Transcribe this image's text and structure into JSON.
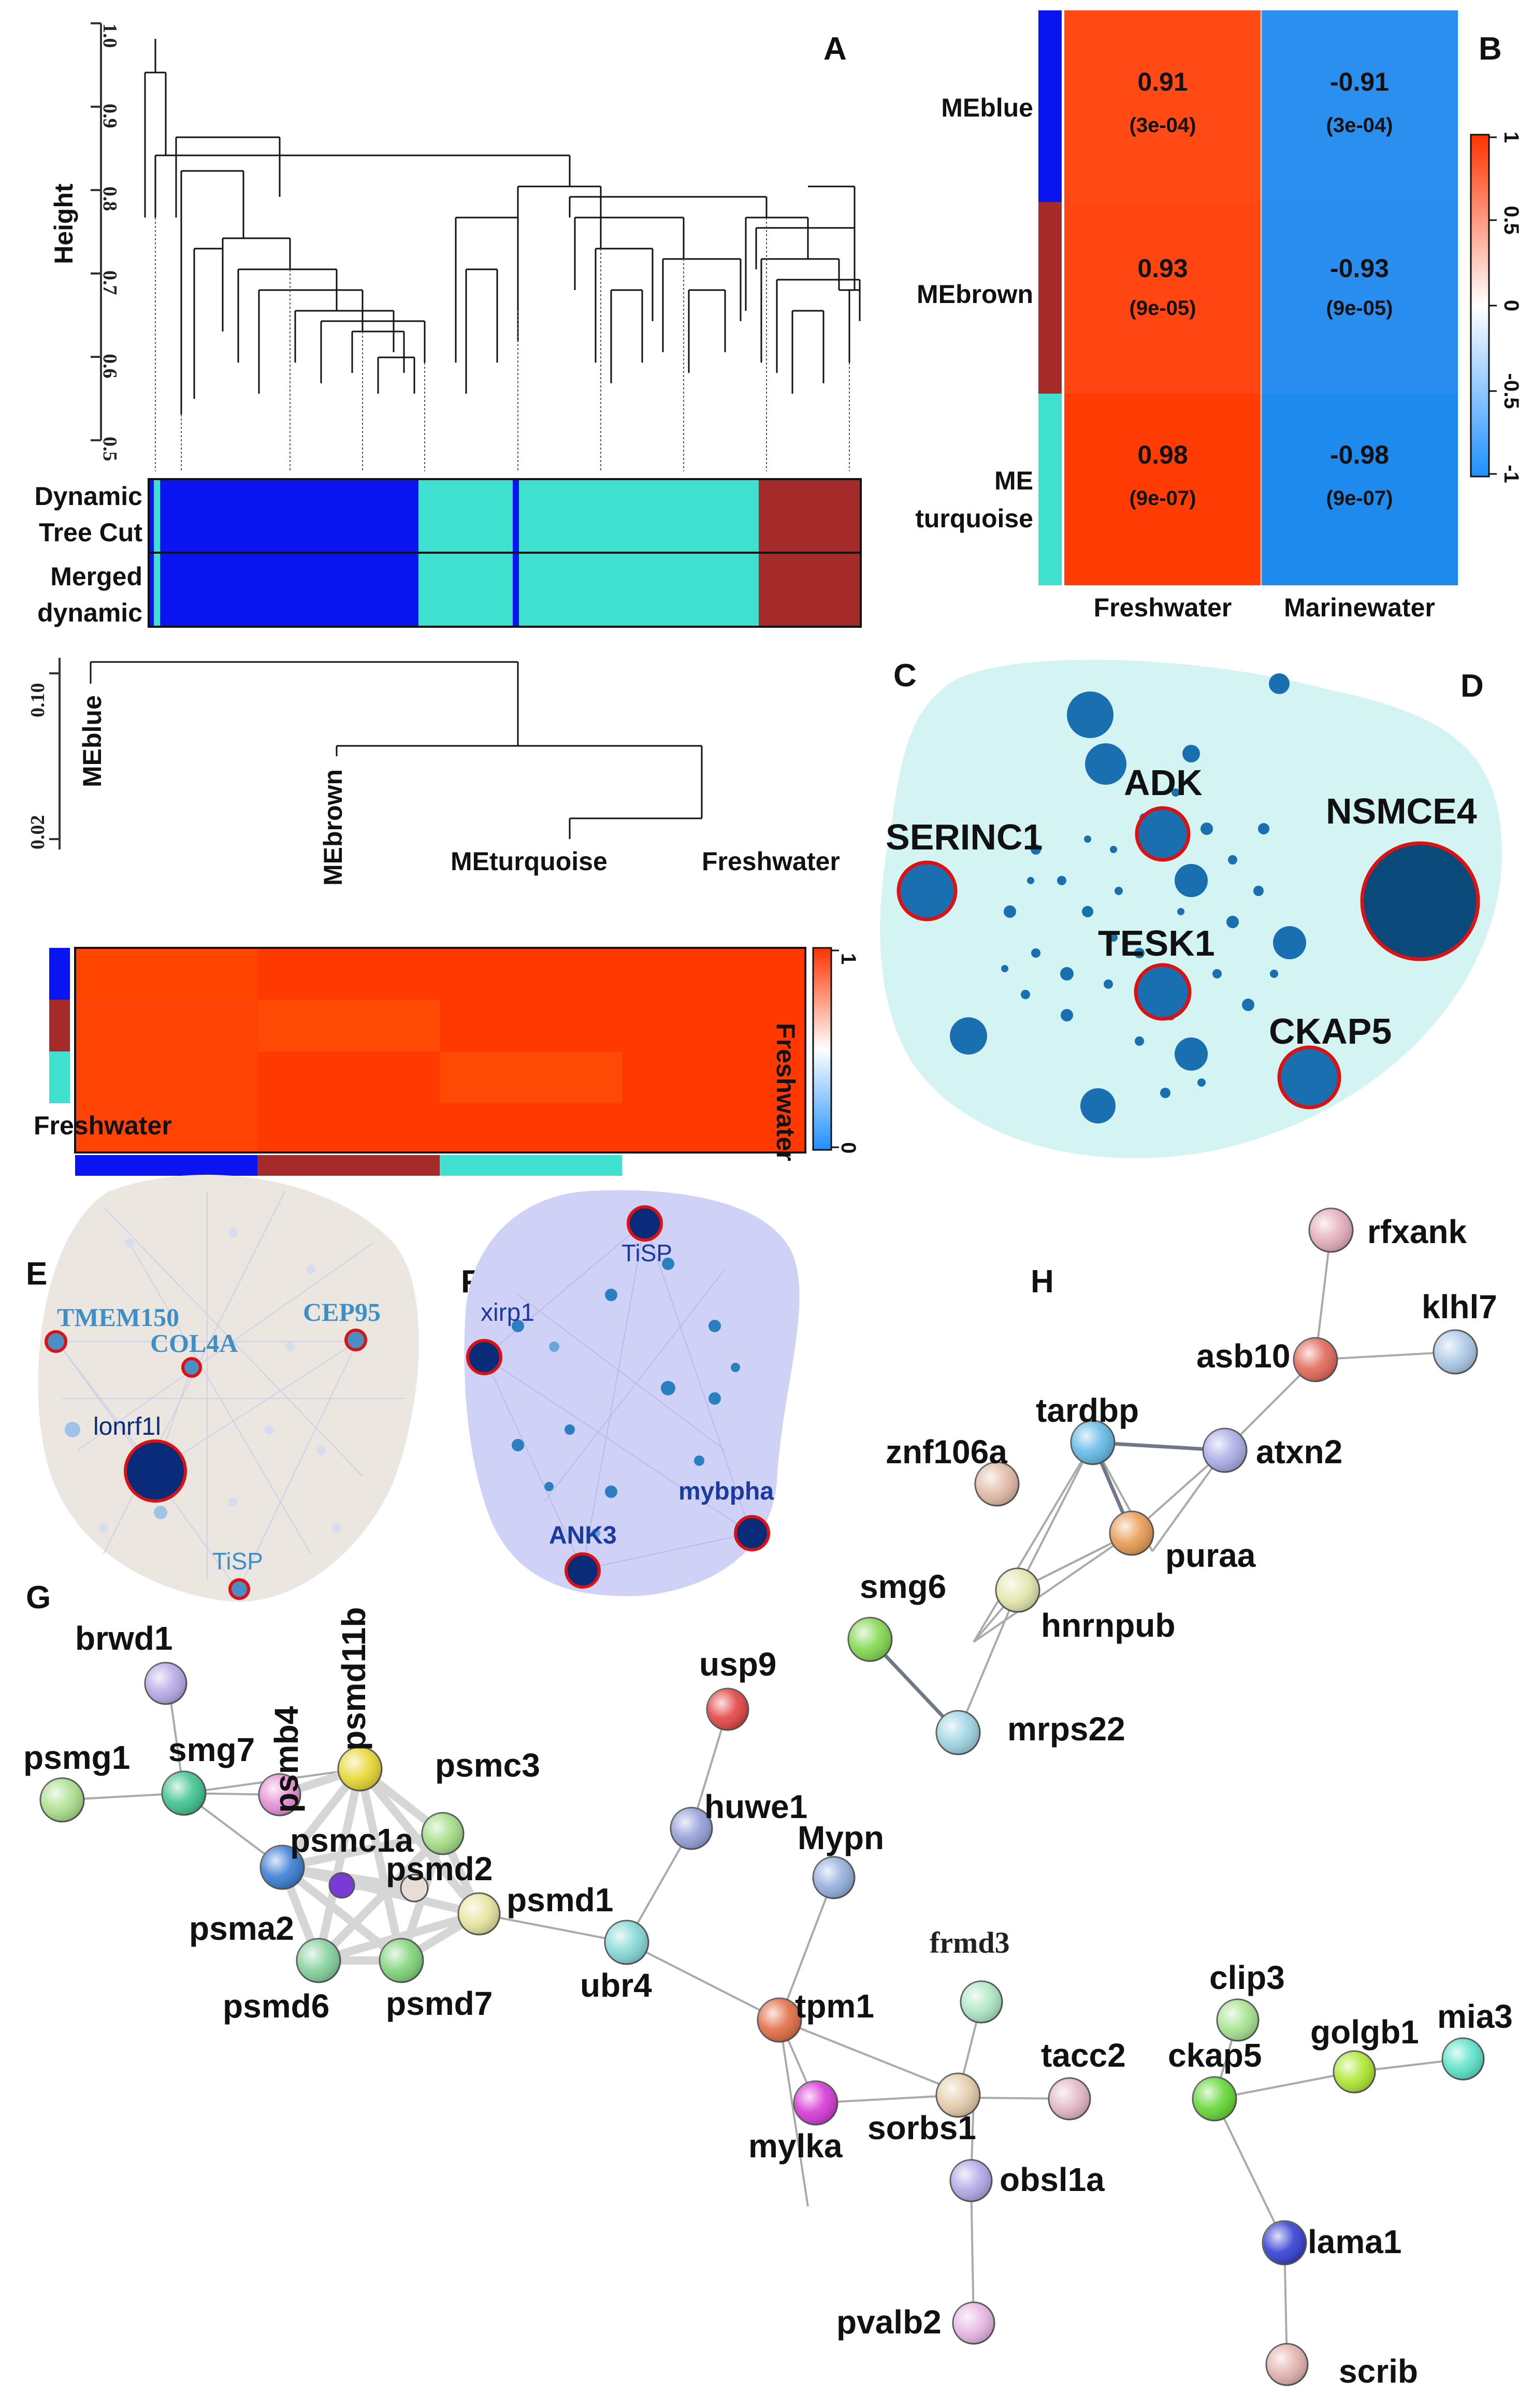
{
  "panel_letters": {
    "a": "A",
    "b": "B",
    "c": "C",
    "d": "D",
    "e": "E",
    "f": "F",
    "g": "G",
    "h": "H"
  },
  "panel_a": {
    "ylabel": "Height",
    "yticks": [
      "1.0",
      "0.9",
      "0.8",
      "0.7",
      "0.6",
      "0.5"
    ],
    "bar_label_1_line1": "Dynamic",
    "bar_label_1_line2": "Tree Cut",
    "bar_label_2_line1": "Merged",
    "bar_label_2_line2": "dynamic",
    "module_colors": {
      "blue": "#0a14f0",
      "turquoise": "#40e0d0",
      "brown": "#a52a2a"
    }
  },
  "panel_a_lower": {
    "yticks": [
      "0.10",
      "0.02"
    ],
    "leaf_labels": [
      "MEblue",
      "MEbrown",
      "MEturquoise",
      "Freshwater"
    ],
    "heatmap_row_label": "Freshwater",
    "heatmap_col_label": "Freshwater",
    "colorbar_ticks": [
      "1",
      "0"
    ]
  },
  "panel_b": {
    "rows": [
      "MEblue",
      "MEbrown",
      "ME turquoise"
    ],
    "row_line1": [
      "MEblue",
      "MEbrown",
      "ME"
    ],
    "row_line2": [
      "",
      "",
      "turquoise"
    ],
    "columns": [
      "Freshwater",
      "Marinewater"
    ],
    "values": [
      [
        "0.91",
        "-0.91"
      ],
      [
        "0.93",
        "-0.93"
      ],
      [
        "0.98",
        "-0.98"
      ]
    ],
    "pvalues": [
      [
        "(3e-04)",
        "(3e-04)"
      ],
      [
        "(9e-05)",
        "(9e-05)"
      ],
      [
        "(9e-07)",
        "(9e-07)"
      ]
    ],
    "colorbar_ticks": [
      "1",
      "0.5",
      "0",
      "-0.5",
      "-1"
    ]
  },
  "panel_c": {
    "hubs": [
      "ADK",
      "NSMCE4",
      "SERINC1",
      "TESK1",
      "CKAP5"
    ]
  },
  "panel_e": {
    "genes": [
      "TMEM150",
      "CEP95",
      "COL4A",
      "lonrf1l",
      "TiSP"
    ]
  },
  "panel_f": {
    "genes": [
      "TiSP",
      "xirp1",
      "mybpha",
      "ANK3"
    ]
  },
  "panel_g": {
    "genes": [
      "brwd1",
      "psmd11b",
      "usp9",
      "psmb4",
      "psmg1",
      "smg7",
      "psmc3",
      "psmc1a",
      "psmd2",
      "huwe1",
      "psmd1",
      "psma2",
      "Mypn",
      "psmd6",
      "psmd7",
      "ubr4",
      "tpm1",
      "frmd3",
      "clip3",
      "tacc2",
      "ckap5",
      "golgb1",
      "mia3",
      "sorbs1",
      "mylka",
      "obsl1a",
      "lama1",
      "pvalb2",
      "scrib"
    ]
  },
  "panel_h": {
    "genes": [
      "rfxank",
      "klhl7",
      "asb10",
      "tardbp",
      "znf106a",
      "atxn2",
      "puraa",
      "smg6",
      "hnrnpub",
      "mrps22"
    ]
  }
}
